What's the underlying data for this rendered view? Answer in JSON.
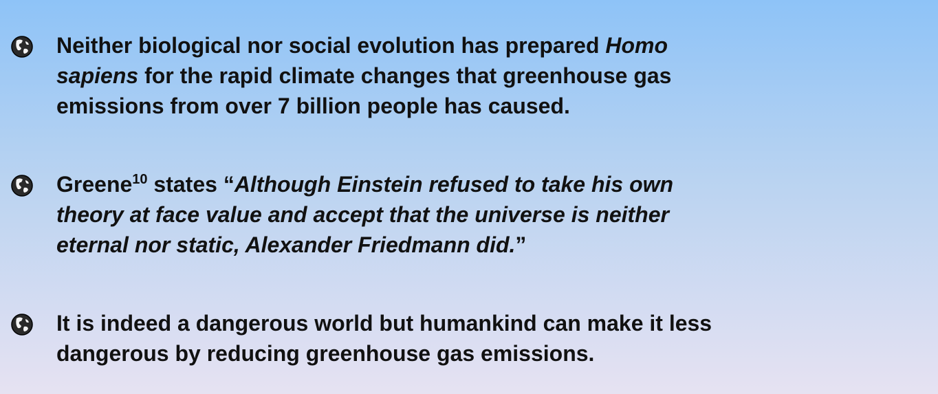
{
  "bullets": [
    {
      "lines": [
        [
          {
            "text": "Neither biological nor social evolution has prepared "
          },
          {
            "text": "Homo",
            "italic": true
          }
        ],
        [
          {
            "text": "sapiens",
            "italic": true
          },
          {
            "text": " for the rapid climate changes that greenhouse gas"
          }
        ],
        [
          {
            "text": "emissions from over 7 billion people has caused."
          }
        ]
      ]
    },
    {
      "lines": [
        [
          {
            "text": "Greene"
          },
          {
            "text": "10",
            "sup": true
          },
          {
            "text": " states “"
          },
          {
            "text": "Although Einstein refused to take his own",
            "italic": true
          }
        ],
        [
          {
            "text": "theory at face value and accept that the universe is neither",
            "italic": true
          }
        ],
        [
          {
            "text": "eternal nor static, Alexander Friedmann did.",
            "italic": true
          },
          {
            "text": "”"
          }
        ]
      ]
    },
    {
      "lines": [
        [
          {
            "text": "It is indeed a dangerous world but humankind can make it less"
          }
        ],
        [
          {
            "text": "dangerous by reducing greenhouse gas emissions."
          }
        ]
      ]
    }
  ]
}
